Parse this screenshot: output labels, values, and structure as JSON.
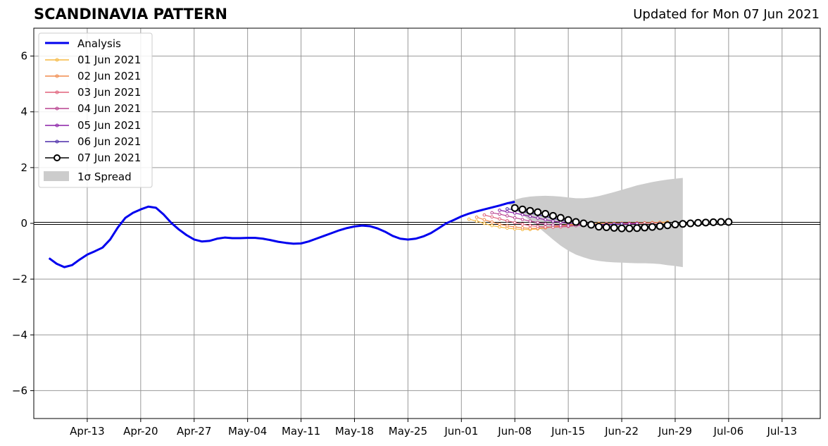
{
  "header": {
    "title": "SCANDINAVIA PATTERN",
    "updated": "Updated for Mon 07 Jun 2021"
  },
  "chart_data": {
    "type": "line",
    "title": "SCANDINAVIA PATTERN",
    "subtitle": "Updated for Mon 07 Jun 2021",
    "xlabel": "",
    "ylabel": "",
    "x_range_days": [
      "2021-04-06",
      "2021-07-18"
    ],
    "ylim": [
      -7,
      7
    ],
    "grid": true,
    "legend_position": "top-left",
    "x_ticks": [
      "Apr-13",
      "Apr-20",
      "Apr-27",
      "May-04",
      "May-11",
      "May-18",
      "May-25",
      "Jun-01",
      "Jun-08",
      "Jun-15",
      "Jun-22",
      "Jun-29",
      "Jul-06",
      "Jul-13"
    ],
    "x_tick_dates": [
      "2021-04-13",
      "2021-04-20",
      "2021-04-27",
      "2021-05-04",
      "2021-05-11",
      "2021-05-18",
      "2021-05-25",
      "2021-06-01",
      "2021-06-08",
      "2021-06-15",
      "2021-06-22",
      "2021-06-29",
      "2021-07-06",
      "2021-07-13"
    ],
    "y_ticks": [
      -6,
      -4,
      -2,
      0,
      2,
      4,
      6
    ],
    "y_tick_labels": [
      "−6",
      "−4",
      "−2",
      "0",
      "2",
      "4",
      "6"
    ],
    "analysis": {
      "name": "Analysis",
      "color": "#0000ee",
      "start_date": "2021-04-08",
      "values": [
        -1.25,
        -1.45,
        -1.57,
        -1.5,
        -1.3,
        -1.12,
        -1.0,
        -0.87,
        -0.58,
        -0.15,
        0.2,
        0.38,
        0.5,
        0.6,
        0.56,
        0.32,
        0.02,
        -0.22,
        -0.42,
        -0.58,
        -0.65,
        -0.63,
        -0.55,
        -0.51,
        -0.53,
        -0.53,
        -0.52,
        -0.52,
        -0.55,
        -0.6,
        -0.66,
        -0.7,
        -0.73,
        -0.72,
        -0.65,
        -0.55,
        -0.45,
        -0.35,
        -0.25,
        -0.17,
        -0.11,
        -0.08,
        -0.1,
        -0.18,
        -0.3,
        -0.45,
        -0.55,
        -0.58,
        -0.55,
        -0.47,
        -0.35,
        -0.18,
        0.0,
        0.12,
        0.25,
        0.35,
        0.43,
        0.5,
        0.57,
        0.64,
        0.72,
        0.77
      ]
    },
    "forecasts": [
      {
        "name": "01 Jun 2021",
        "color": "#f5b840",
        "start_date": "2021-06-02",
        "values": [
          0.15,
          0.08,
          0.0,
          -0.08,
          -0.13,
          -0.17,
          -0.2,
          -0.22,
          -0.22,
          -0.2,
          -0.16,
          -0.12,
          -0.08,
          -0.05,
          -0.03,
          -0.02,
          -0.01,
          0.0,
          0.0,
          0.01,
          0.01,
          0.01,
          0.02,
          0.02,
          0.03,
          0.04,
          0.05
        ]
      },
      {
        "name": "02 Jun 2021",
        "color": "#f08a4b",
        "start_date": "2021-06-03",
        "values": [
          0.22,
          0.13,
          0.05,
          -0.03,
          -0.09,
          -0.13,
          -0.16,
          -0.18,
          -0.18,
          -0.16,
          -0.13,
          -0.1,
          -0.07,
          -0.05,
          -0.04,
          -0.03,
          -0.02,
          -0.01,
          -0.01,
          0.0,
          0.0,
          0.01,
          0.01,
          0.02,
          0.02,
          0.03
        ]
      },
      {
        "name": "03 Jun 2021",
        "color": "#e0607a",
        "start_date": "2021-06-04",
        "values": [
          0.3,
          0.23,
          0.16,
          0.09,
          0.03,
          -0.03,
          -0.08,
          -0.11,
          -0.13,
          -0.14,
          -0.13,
          -0.11,
          -0.08,
          -0.06,
          -0.04,
          -0.03,
          -0.02,
          -0.01,
          -0.01,
          0.0,
          0.0,
          0.01,
          0.01,
          0.02
        ]
      },
      {
        "name": "04 Jun 2021",
        "color": "#b8408f",
        "start_date": "2021-06-05",
        "values": [
          0.38,
          0.33,
          0.27,
          0.2,
          0.14,
          0.08,
          0.03,
          -0.02,
          -0.06,
          -0.08,
          -0.09,
          -0.08,
          -0.06,
          -0.05,
          -0.04,
          -0.03,
          -0.02,
          -0.01,
          -0.01,
          0.0
        ]
      },
      {
        "name": "05 Jun 2021",
        "color": "#8a1fa6",
        "start_date": "2021-06-06",
        "values": [
          0.47,
          0.42,
          0.37,
          0.31,
          0.25,
          0.19,
          0.13,
          0.08,
          0.04,
          0.0,
          -0.03,
          -0.05,
          -0.06,
          -0.06,
          -0.05,
          -0.04,
          -0.03,
          -0.02,
          -0.01
        ]
      },
      {
        "name": "06 Jun 2021",
        "color": "#4a2aa8",
        "start_date": "2021-06-07",
        "values": [
          0.52,
          0.48,
          0.43,
          0.37,
          0.31,
          0.25,
          0.18,
          0.12,
          0.07,
          0.03,
          -0.01,
          -0.03,
          -0.04,
          -0.04,
          -0.03,
          -0.02
        ]
      },
      {
        "name": "07 Jun 2021",
        "color": "#000000",
        "start_date": "2021-06-08",
        "values": [
          0.55,
          0.5,
          0.45,
          0.4,
          0.34,
          0.27,
          0.2,
          0.12,
          0.05,
          0.0,
          -0.05,
          -0.12,
          -0.14,
          -0.16,
          -0.18,
          -0.18,
          -0.17,
          -0.15,
          -0.13,
          -0.1,
          -0.07,
          -0.04,
          -0.02,
          0.0,
          0.02,
          0.03,
          0.04,
          0.05,
          0.05
        ]
      }
    ],
    "spread": {
      "name": "1σ Spread",
      "color": "#cccccc",
      "start_date": "2021-06-07",
      "upper": [
        0.75,
        0.85,
        0.92,
        0.96,
        0.98,
        0.99,
        0.98,
        0.96,
        0.93,
        0.9,
        0.9,
        0.93,
        0.98,
        1.05,
        1.12,
        1.2,
        1.28,
        1.36,
        1.42,
        1.48,
        1.53,
        1.57,
        1.6,
        1.63
      ],
      "lower": [
        0.75,
        0.5,
        0.3,
        0.1,
        -0.12,
        -0.35,
        -0.58,
        -0.8,
        -0.98,
        -1.12,
        -1.22,
        -1.3,
        -1.35,
        -1.38,
        -1.4,
        -1.41,
        -1.42,
        -1.43,
        -1.43,
        -1.44,
        -1.46,
        -1.5,
        -1.53,
        -1.57
      ]
    }
  },
  "legend": {
    "analysis": "Analysis",
    "f1": "01 Jun 2021",
    "f2": "02 Jun 2021",
    "f3": "03 Jun 2021",
    "f4": "04 Jun 2021",
    "f5": "05 Jun 2021",
    "f6": "06 Jun 2021",
    "f7": "07 Jun 2021",
    "spread": "1σ Spread"
  }
}
